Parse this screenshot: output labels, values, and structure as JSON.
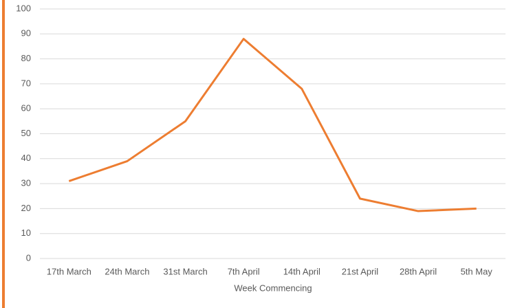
{
  "chart_data": {
    "type": "line",
    "x_label": "Week Commencing",
    "categories": [
      "17th March",
      "24th March",
      "31st March",
      "7th April",
      "14th April",
      "21st April",
      "28th April",
      "5th May"
    ],
    "series": [
      {
        "color": "#ed7d31",
        "values": [
          31,
          39,
          55,
          88,
          68,
          24,
          19,
          20
        ]
      }
    ],
    "ylim": [
      0,
      100
    ],
    "yticks": [
      0,
      10,
      20,
      30,
      40,
      50,
      60,
      70,
      80,
      90,
      100
    ],
    "grid": true
  }
}
